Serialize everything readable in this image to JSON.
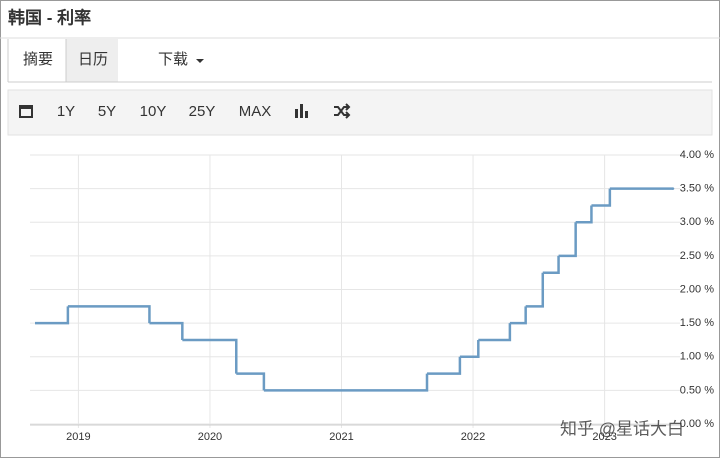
{
  "header": {
    "title": "韩国 - 利率"
  },
  "tabs": [
    "摘要",
    "日历",
    "下载"
  ],
  "toolbar": [
    "1Y",
    "5Y",
    "10Y",
    "25Y",
    "MAX"
  ],
  "watermark": "知乎 @星话大白",
  "chart_data": {
    "type": "line",
    "step": true,
    "color": "#6b9bc3",
    "grid": true,
    "x": [
      2018.67,
      2018.92,
      2019.54,
      2019.79,
      2020.2,
      2020.41,
      2021.65,
      2021.9,
      2022.04,
      2022.28,
      2022.4,
      2022.53,
      2022.65,
      2022.78,
      2022.9,
      2023.04,
      2023.52
    ],
    "values": [
      1.5,
      1.75,
      1.5,
      1.25,
      0.75,
      0.5,
      0.75,
      1.0,
      1.25,
      1.5,
      1.75,
      2.25,
      2.5,
      3.0,
      3.25,
      3.5,
      3.5
    ],
    "xlim": [
      2018.67,
      2023.52
    ],
    "xticks": [
      2019,
      2020,
      2021,
      2022,
      2023
    ],
    "ylim": [
      0,
      4
    ],
    "yticks": [
      {
        "value": 0,
        "label": "0.00 %"
      },
      {
        "value": 0.5,
        "label": "0.50 %"
      },
      {
        "value": 1,
        "label": "1.00 %"
      },
      {
        "value": 1.5,
        "label": "1.50 %"
      },
      {
        "value": 2,
        "label": "2.00 %"
      },
      {
        "value": 2.5,
        "label": "2.50 %"
      },
      {
        "value": 3,
        "label": "3.00 %"
      },
      {
        "value": 3.5,
        "label": "3.50 %"
      },
      {
        "value": 4,
        "label": "4.00 %"
      }
    ]
  }
}
